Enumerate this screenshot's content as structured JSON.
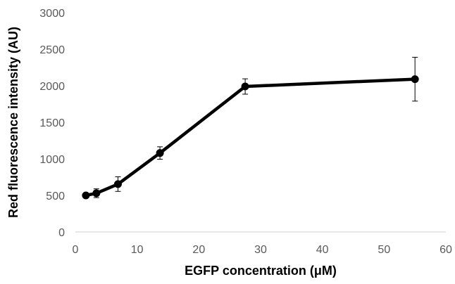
{
  "chart_data": {
    "type": "line",
    "title": "",
    "xlabel": "EGFP concentration (μM)",
    "ylabel": "Red fluorescence intensity (AU)",
    "xlim": [
      0,
      60
    ],
    "ylim": [
      0,
      3000
    ],
    "x_ticks": [
      "0",
      "10",
      "20",
      "30",
      "40",
      "50",
      "60"
    ],
    "y_ticks": [
      "0",
      "500",
      "1000",
      "1500",
      "2000",
      "2500",
      "3000"
    ],
    "grid": false,
    "legend": "none",
    "series": [
      {
        "color": "#000000",
        "points": [
          {
            "x": 1.7,
            "y": 500,
            "err": 25
          },
          {
            "x": 3.4,
            "y": 530,
            "err": 60
          },
          {
            "x": 6.9,
            "y": 655,
            "err": 100
          },
          {
            "x": 13.7,
            "y": 1080,
            "err": 85
          },
          {
            "x": 27.5,
            "y": 1990,
            "err": 105
          },
          {
            "x": 55,
            "y": 2090,
            "err": 300
          }
        ]
      }
    ]
  }
}
